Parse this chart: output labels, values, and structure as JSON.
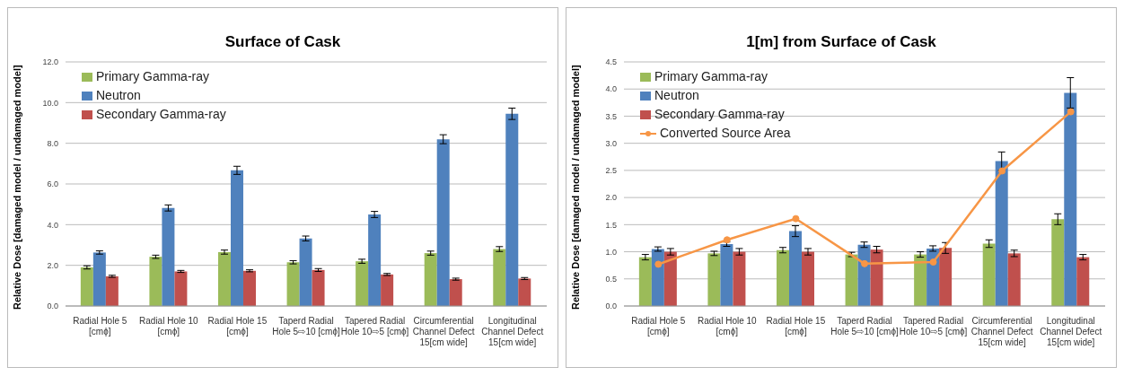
{
  "chart_data": [
    {
      "type": "bar",
      "title": "Surface of Cask",
      "ylabel": "Relative Dose [damaged model / undamaged model]",
      "categories": [
        "Radial Hole 5 [cmϕ]",
        "Radial Hole 10 [cmϕ]",
        "Radial Hole 15 [cmϕ]",
        "Taperd Radial Hole 5⇨10 [cmϕ]",
        "Tapered Radial Hole 10⇨5 [cmϕ]",
        "Circumferential Channel Defect 15[cm wide]",
        "Longitudinal Channel Defect 15[cm wide]"
      ],
      "series": [
        {
          "name": "Primary Gamma-ray",
          "color": "#9bbb59",
          "values": [
            1.9,
            2.42,
            2.65,
            2.15,
            2.2,
            2.6,
            2.8
          ],
          "errors": [
            0.08,
            0.08,
            0.1,
            0.08,
            0.1,
            0.1,
            0.12
          ]
        },
        {
          "name": "Neutron",
          "color": "#4f81bd",
          "values": [
            2.63,
            4.82,
            6.67,
            3.32,
            4.5,
            8.2,
            9.45
          ],
          "errors": [
            0.08,
            0.15,
            0.2,
            0.12,
            0.15,
            0.22,
            0.28
          ]
        },
        {
          "name": "Secondary Gamma-ray",
          "color": "#c0504d",
          "values": [
            1.46,
            1.7,
            1.73,
            1.77,
            1.55,
            1.32,
            1.35
          ],
          "errors": [
            0.05,
            0.05,
            0.05,
            0.07,
            0.05,
            0.05,
            0.05
          ]
        }
      ],
      "ylim": [
        0,
        12
      ],
      "yticks": [
        {
          "value": 0,
          "label": "0.0"
        },
        {
          "value": 2,
          "label": "2.0"
        },
        {
          "value": 4,
          "label": "4.0"
        },
        {
          "value": 6,
          "label": "6.0"
        },
        {
          "value": 8,
          "label": "8.0"
        },
        {
          "value": 10,
          "label": "10.0"
        },
        {
          "value": 12,
          "label": "12.0"
        }
      ],
      "grid": "y",
      "legend": "top left"
    },
    {
      "type": "bar",
      "title": "1[m] from Surface of Cask",
      "ylabel": "Relative Dose [damaged model / undamaged model]",
      "categories": [
        "Radial Hole 5 [cmϕ]",
        "Radial Hole 10 [cmϕ]",
        "Radial Hole 15 [cmϕ]",
        "Taperd Radial Hole 5⇨10 [cmϕ]",
        "Tapered Radial Hole 10⇨5 [cmϕ]",
        "Circumferential Channel Defect 15[cm wide]",
        "Longitudinal Channel Defect 15[cm wide]"
      ],
      "series": [
        {
          "name": "Primary Gamma-ray",
          "color": "#9bbb59",
          "values": [
            0.9,
            0.97,
            1.03,
            0.95,
            0.95,
            1.15,
            1.6
          ],
          "errors": [
            0.05,
            0.04,
            0.05,
            0.04,
            0.05,
            0.07,
            0.1
          ]
        },
        {
          "name": "Neutron",
          "color": "#4f81bd",
          "values": [
            1.05,
            1.14,
            1.38,
            1.13,
            1.06,
            2.67,
            3.93
          ],
          "errors": [
            0.04,
            0.04,
            0.1,
            0.05,
            0.05,
            0.17,
            0.28
          ]
        },
        {
          "name": "Secondary Gamma-ray",
          "color": "#c0504d",
          "values": [
            1.0,
            1.0,
            1.0,
            1.04,
            1.07,
            0.97,
            0.9
          ],
          "errors": [
            0.06,
            0.06,
            0.06,
            0.06,
            0.1,
            0.06,
            0.05
          ]
        },
        {
          "name": "Converted Source Area",
          "type": "line",
          "color": "#f79646",
          "marker": "circle",
          "values": [
            0.77,
            1.22,
            1.61,
            0.78,
            0.81,
            2.49,
            3.58
          ]
        }
      ],
      "ylim": [
        0,
        4.5
      ],
      "yticks": [
        {
          "value": 0,
          "label": "0.0"
        },
        {
          "value": 0.5,
          "label": "0.5"
        },
        {
          "value": 1,
          "label": "1.0"
        },
        {
          "value": 1.5,
          "label": "1.5"
        },
        {
          "value": 2,
          "label": "2.0"
        },
        {
          "value": 2.5,
          "label": "2.5"
        },
        {
          "value": 3,
          "label": "3.0"
        },
        {
          "value": 3.5,
          "label": "3.5"
        },
        {
          "value": 4,
          "label": "4.0"
        },
        {
          "value": 4.5,
          "label": "4.5"
        }
      ],
      "grid": "y",
      "legend": "top left"
    }
  ]
}
